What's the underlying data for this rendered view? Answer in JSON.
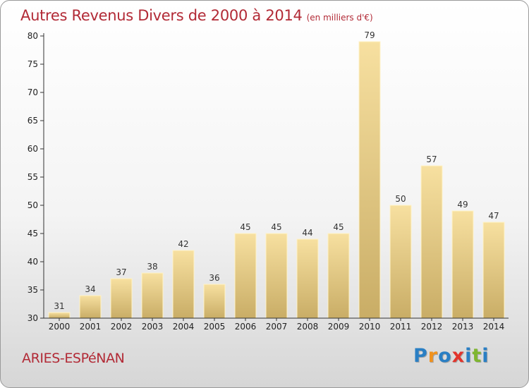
{
  "chart_data": {
    "type": "bar",
    "title": "Autres Revenus Divers de 2000 à 2014",
    "subtitle": "(en milliers d'€)",
    "categories": [
      "2000",
      "2001",
      "2002",
      "2003",
      "2004",
      "2005",
      "2006",
      "2007",
      "2008",
      "2009",
      "2010",
      "2011",
      "2012",
      "2013",
      "2014"
    ],
    "values": [
      31,
      34,
      37,
      38,
      42,
      36,
      45,
      45,
      44,
      45,
      79,
      50,
      57,
      49,
      47
    ],
    "ylim": [
      30,
      80
    ],
    "yticks": [
      30,
      35,
      40,
      45,
      50,
      55,
      60,
      65,
      70,
      75,
      80
    ],
    "grid": false,
    "data_labels": true
  },
  "place_name": "ARIES-ESPéNAN",
  "logo": {
    "letters": [
      "P",
      "r",
      "o",
      "x",
      "i",
      "t",
      "i"
    ],
    "colors": [
      "#2a7fc4",
      "#f0921e",
      "#2a7fc4",
      "#e2342c",
      "#2a7fc4",
      "#7fb630",
      "#2a7fc4"
    ]
  },
  "colors": {
    "bar_light": "#f7e0a0",
    "bar_dark": "#c9ad66",
    "accent": "#b22a36"
  }
}
